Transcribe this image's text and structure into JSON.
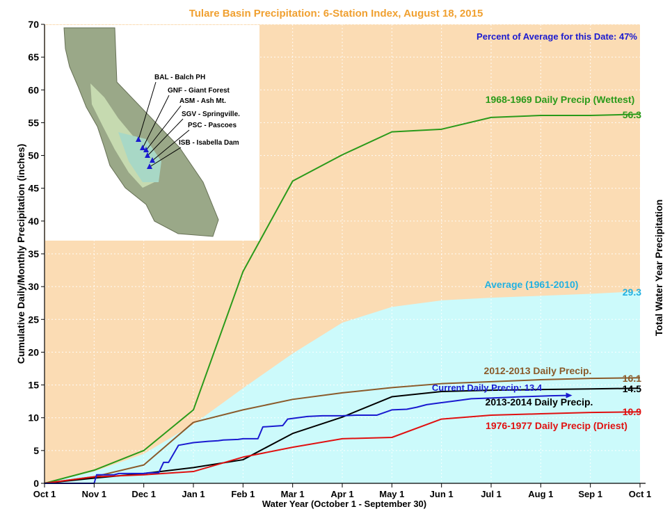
{
  "chart_data": {
    "type": "line",
    "title": "Tulare Basin Precipitation: 6-Station Index, August 18, 2015",
    "xlabel": "Water Year (October 1 - September 30)",
    "ylabel": "Cumulative Daily/Monthly Precipitation (inches)",
    "ylabel_right": "Total Water Year Precipitation",
    "ylim": [
      0,
      70
    ],
    "yticks": [
      0,
      5,
      10,
      15,
      20,
      25,
      30,
      35,
      40,
      45,
      50,
      55,
      60,
      65,
      70
    ],
    "xlim": [
      0,
      12
    ],
    "x_tick_labels": [
      "Oct 1",
      "Nov 1",
      "Dec 1",
      "Jan 1",
      "Feb 1",
      "Mar 1",
      "Apr 1",
      "May 1",
      "Jun 1",
      "Jul 1",
      "Aug 1",
      "Sep 1",
      "Oct 1"
    ],
    "percent_note": "Percent of Average for this Date: 47%",
    "colors": {
      "plot_bg": "#fbdcb4",
      "average_fill": "#ccfafb",
      "title": "#f0a030",
      "note": "#1a1ad0"
    },
    "average": {
      "name": "Average (1961-2010)",
      "total_label": "29.3",
      "color": "#22b0e0",
      "x": [
        0,
        1,
        2,
        3,
        4,
        5,
        6,
        7,
        8,
        9,
        10,
        11,
        12
      ],
      "y": [
        0,
        1.8,
        4.5,
        9.0,
        14.5,
        19.8,
        24.5,
        26.9,
        27.9,
        28.3,
        28.6,
        28.9,
        29.3
      ]
    },
    "series": [
      {
        "name": "1968-1969 Daily Precip (Wettest)",
        "total_label": "56.3",
        "color": "#2a9a1a",
        "x": [
          0,
          1,
          2,
          3,
          4,
          5,
          6,
          7,
          8,
          9,
          10,
          11,
          12
        ],
        "y": [
          0,
          2.0,
          5.0,
          11.2,
          32.3,
          46.1,
          50.1,
          53.6,
          54.0,
          55.8,
          56.1,
          56.1,
          56.3
        ]
      },
      {
        "name": "2012-2013 Daily Precip.",
        "total_label": "16.1",
        "color": "#8a5a2a",
        "x": [
          0,
          1,
          2,
          3,
          4,
          5,
          6,
          7,
          8,
          9,
          10,
          11,
          12
        ],
        "y": [
          0,
          1.0,
          2.8,
          9.3,
          11.2,
          12.8,
          13.8,
          14.6,
          15.2,
          15.5,
          15.8,
          16.0,
          16.1
        ]
      },
      {
        "name": "2013-2014 Daily Precip.",
        "total_label": "14.5",
        "color": "#000000",
        "x": [
          0,
          1,
          2,
          3,
          4,
          5,
          6,
          7,
          8,
          9,
          10,
          11,
          12
        ],
        "y": [
          0,
          0.8,
          1.5,
          2.4,
          3.6,
          7.6,
          10.1,
          13.2,
          14.0,
          14.2,
          14.3,
          14.4,
          14.5
        ]
      },
      {
        "name": "1976-1977 Daily Precip (Driest)",
        "total_label": "10.9",
        "color": "#e01010",
        "x": [
          0,
          1,
          2,
          3,
          4,
          5,
          6,
          7,
          8,
          9,
          10,
          11,
          12
        ],
        "y": [
          0,
          1.0,
          1.3,
          1.8,
          4.0,
          5.5,
          6.8,
          7.0,
          9.8,
          10.4,
          10.6,
          10.8,
          10.9
        ]
      },
      {
        "name": "Current Daily Precip: 13.4",
        "color": "#1a1ad0",
        "x": [
          0,
          1.0,
          1.05,
          1.4,
          1.5,
          2.0,
          2.1,
          2.3,
          2.4,
          2.5,
          2.7,
          3.0,
          3.3,
          3.5,
          3.6,
          3.9,
          4.0,
          4.3,
          4.4,
          4.8,
          4.9,
          5.3,
          5.6,
          6.0,
          6.3,
          6.7,
          7.0,
          7.3,
          7.5,
          7.7,
          8.0,
          8.3,
          8.6,
          9.0,
          9.3,
          9.6,
          10.0,
          10.2,
          10.55
        ],
        "y": [
          0,
          0,
          1.3,
          1.3,
          1.5,
          1.5,
          1.6,
          1.6,
          3.2,
          3.2,
          5.8,
          6.2,
          6.4,
          6.5,
          6.6,
          6.7,
          6.8,
          6.8,
          8.6,
          8.8,
          9.8,
          10.2,
          10.3,
          10.3,
          10.4,
          10.4,
          11.2,
          11.3,
          11.6,
          12.0,
          12.3,
          12.6,
          12.9,
          13.0,
          13.1,
          13.2,
          13.3,
          13.35,
          13.4
        ]
      }
    ],
    "inset_map": {
      "stations": [
        "BAL - Balch PH",
        "GNF - Giant Forest",
        "ASM - Ash Mt.",
        "SGV - Springville.",
        "PSC - Pascoes",
        "ISB - Isabella Dam"
      ]
    }
  }
}
